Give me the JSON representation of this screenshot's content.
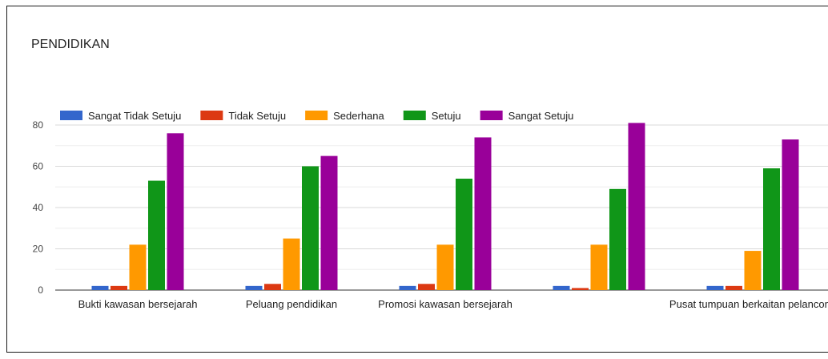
{
  "chart_data": {
    "type": "bar",
    "title": "PENDIDIKAN",
    "categories": [
      "Bukti kawasan bersejarah",
      "Peluang pendidikan",
      "Promosi kawasan bersejarah",
      "",
      "Pusat tumpuan berkaitan pelancong"
    ],
    "series": [
      {
        "name": "Sangat Tidak Setuju",
        "color": "#3366cc",
        "values": [
          2,
          2,
          2,
          2,
          2
        ]
      },
      {
        "name": "Tidak Setuju",
        "color": "#dc3912",
        "values": [
          2,
          3,
          3,
          1,
          2
        ]
      },
      {
        "name": "Sederhana",
        "color": "#ff9900",
        "values": [
          22,
          25,
          22,
          22,
          19
        ]
      },
      {
        "name": "Setuju",
        "color": "#109618",
        "values": [
          53,
          60,
          54,
          49,
          59
        ]
      },
      {
        "name": "Sangat Setuju",
        "color": "#990099",
        "values": [
          76,
          65,
          74,
          81,
          73
        ]
      }
    ],
    "ylim": [
      0,
      80
    ],
    "yticks": [
      0,
      20,
      40,
      60,
      80
    ],
    "grid": true,
    "legend": "top"
  }
}
